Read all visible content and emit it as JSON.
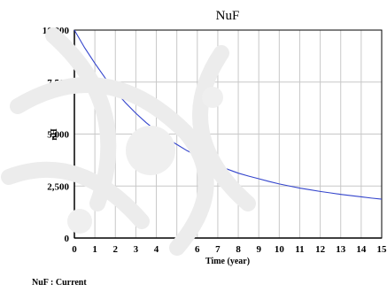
{
  "chart_data": {
    "type": "line",
    "title": "NuF",
    "xlabel": "Time (year)",
    "ylabel": "nH",
    "xlim": [
      0,
      15
    ],
    "ylim": [
      0,
      10000
    ],
    "x_ticks": [
      "0",
      "1",
      "2",
      "3",
      "4",
      "5",
      "6",
      "7",
      "8",
      "9",
      "10",
      "11",
      "12",
      "13",
      "14",
      "15"
    ],
    "y_ticks": [
      "0",
      "2,500",
      "5,000",
      "7,500",
      "10,000"
    ],
    "grid": true,
    "series": [
      {
        "name": "NuF : Current",
        "color": "#3344cc",
        "x": [
          0,
          0.5,
          1,
          1.5,
          2,
          2.5,
          3,
          3.5,
          4,
          4.5,
          5,
          5.5,
          6,
          6.5,
          7,
          7.5,
          8,
          8.5,
          9,
          9.5,
          10,
          10.5,
          11,
          11.5,
          12,
          12.5,
          13,
          13.5,
          14,
          14.5,
          15
        ],
        "y": [
          10000,
          9150,
          8400,
          7700,
          7050,
          6500,
          6000,
          5550,
          5150,
          4800,
          4500,
          4200,
          3950,
          3700,
          3480,
          3300,
          3120,
          2980,
          2850,
          2720,
          2600,
          2500,
          2400,
          2320,
          2240,
          2170,
          2100,
          2040,
          1980,
          1920,
          1870
        ]
      }
    ]
  },
  "legend": {
    "label": "NuF : Current"
  },
  "colors": {
    "grid": "#c8c8c8",
    "axes": "#000000",
    "watermark": "#e6e6e6"
  }
}
